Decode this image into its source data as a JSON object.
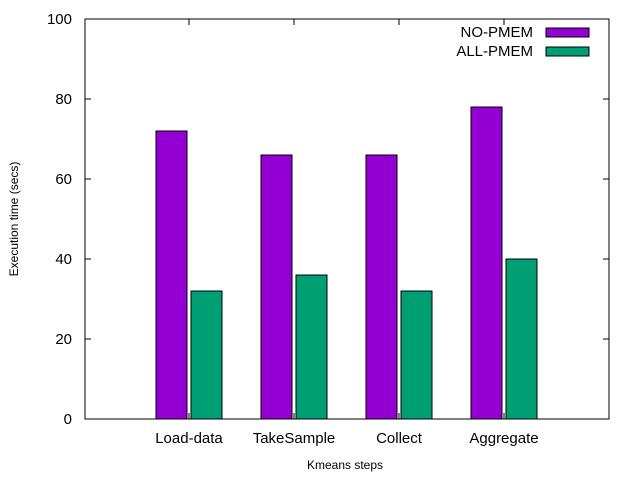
{
  "chart_data": {
    "type": "bar",
    "title": "",
    "xlabel": "Kmeans steps",
    "ylabel": "Execution time (secs)",
    "ylim": [
      0,
      100
    ],
    "yticks": [
      "0",
      "20",
      "40",
      "60",
      "80",
      "100"
    ],
    "categories": [
      "Load-data",
      "TakeSample",
      "Collect",
      "Aggregate"
    ],
    "series": [
      {
        "name": "NO-PMEM",
        "color": "#9400d3",
        "values": [
          72,
          66,
          66,
          78
        ]
      },
      {
        "name": "ALL-PMEM",
        "color": "#009e73",
        "values": [
          32,
          36,
          32,
          40
        ]
      }
    ],
    "legend": "top-right",
    "grid": false
  }
}
